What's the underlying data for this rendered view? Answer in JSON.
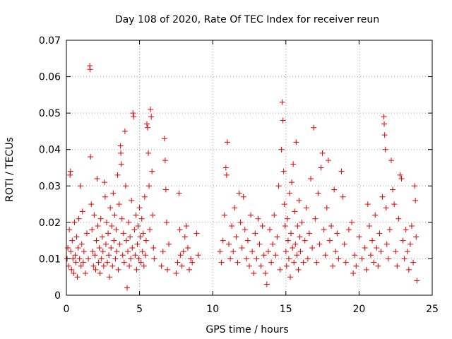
{
  "chart_data": {
    "type": "scatter",
    "title": "Day 108 of 2020, Rate Of TEC Index for receiver reun",
    "xlabel": "GPS time / hours",
    "ylabel": "ROTI / TECUs",
    "xlim": [
      0,
      25
    ],
    "ylim": [
      0,
      0.07
    ],
    "xticks": [
      0,
      5,
      10,
      15,
      20,
      25
    ],
    "yticks": [
      0,
      0.01,
      0.02,
      0.03,
      0.04,
      0.05,
      0.06,
      0.07
    ],
    "xtick_labels": [
      "0",
      "5",
      "10",
      "15",
      "20",
      "25"
    ],
    "ytick_labels": [
      "0",
      "0.01",
      "0.02",
      "0.03",
      "0.04",
      "0.05",
      "0.06",
      "0.07"
    ],
    "grid": true,
    "marker": "+",
    "series": [
      {
        "color": "#e00000",
        "points": [
          [
            0.05,
            0.01
          ],
          [
            0.1,
            0.013
          ],
          [
            0.15,
            0.008
          ],
          [
            0.2,
            0.018
          ],
          [
            0.25,
            0.033
          ],
          [
            0.28,
            0.034
          ],
          [
            0.3,
            0.012
          ],
          [
            0.35,
            0.007
          ],
          [
            0.4,
            0.015
          ],
          [
            0.45,
            0.01
          ],
          [
            0.5,
            0.006
          ],
          [
            0.55,
            0.02
          ],
          [
            0.6,
            0.011
          ],
          [
            0.65,
            0.009
          ],
          [
            0.7,
            0.016
          ],
          [
            0.75,
            0.005
          ],
          [
            0.8,
            0.013
          ],
          [
            0.85,
            0.021
          ],
          [
            0.9,
            0.01
          ],
          [
            0.95,
            0.03
          ],
          [
            1.0,
            0.008
          ],
          [
            1.05,
            0.014
          ],
          [
            1.1,
            0.023
          ],
          [
            1.15,
            0.009
          ],
          [
            1.2,
            0.012
          ],
          [
            1.3,
            0.006
          ],
          [
            1.4,
            0.017
          ],
          [
            1.5,
            0.01
          ],
          [
            1.6,
            0.063
          ],
          [
            1.62,
            0.062
          ],
          [
            1.65,
            0.038
          ],
          [
            1.7,
            0.025
          ],
          [
            1.75,
            0.018
          ],
          [
            1.8,
            0.012
          ],
          [
            1.85,
            0.008
          ],
          [
            1.9,
            0.022
          ],
          [
            1.95,
            0.011
          ],
          [
            2.0,
            0.007
          ],
          [
            2.05,
            0.015
          ],
          [
            2.1,
            0.032
          ],
          [
            2.15,
            0.019
          ],
          [
            2.2,
            0.009
          ],
          [
            2.25,
            0.013
          ],
          [
            2.3,
            0.006
          ],
          [
            2.35,
            0.021
          ],
          [
            2.4,
            0.01
          ],
          [
            2.45,
            0.016
          ],
          [
            2.5,
            0.012
          ],
          [
            2.55,
            0.008
          ],
          [
            2.6,
            0.031
          ],
          [
            2.65,
            0.027
          ],
          [
            2.7,
            0.014
          ],
          [
            2.75,
            0.02
          ],
          [
            2.8,
            0.009
          ],
          [
            2.85,
            0.017
          ],
          [
            2.9,
            0.011
          ],
          [
            2.95,
            0.005
          ],
          [
            3.0,
            0.024
          ],
          [
            3.05,
            0.013
          ],
          [
            3.1,
            0.019
          ],
          [
            3.15,
            0.008
          ],
          [
            3.2,
            0.028
          ],
          [
            3.25,
            0.015
          ],
          [
            3.3,
            0.022
          ],
          [
            3.35,
            0.01
          ],
          [
            3.4,
            0.018
          ],
          [
            3.45,
            0.012
          ],
          [
            3.5,
            0.033
          ],
          [
            3.55,
            0.007
          ],
          [
            3.6,
            0.025
          ],
          [
            3.65,
            0.014
          ],
          [
            3.7,
            0.041
          ],
          [
            3.72,
            0.039
          ],
          [
            3.75,
            0.036
          ],
          [
            3.8,
            0.021
          ],
          [
            3.85,
            0.011
          ],
          [
            3.9,
            0.017
          ],
          [
            3.95,
            0.009
          ],
          [
            4.0,
            0.045
          ],
          [
            4.05,
            0.03
          ],
          [
            4.1,
            0.015
          ],
          [
            4.15,
            0.002
          ],
          [
            4.2,
            0.012
          ],
          [
            4.25,
            0.02
          ],
          [
            4.3,
            0.008
          ],
          [
            4.35,
            0.016
          ],
          [
            4.4,
            0.01
          ],
          [
            4.45,
            0.026
          ],
          [
            4.5,
            0.013
          ],
          [
            4.55,
            0.05
          ],
          [
            4.6,
            0.049
          ],
          [
            4.65,
            0.018
          ],
          [
            4.7,
            0.011
          ],
          [
            4.75,
            0.022
          ],
          [
            4.8,
            0.007
          ],
          [
            4.85,
            0.014
          ],
          [
            4.9,
            0.019
          ],
          [
            4.95,
            0.01
          ],
          [
            5.0,
            0.024
          ],
          [
            5.05,
            0.016
          ],
          [
            5.1,
            0.009
          ],
          [
            5.15,
            0.021
          ],
          [
            5.2,
            0.012
          ],
          [
            5.25,
            0.017
          ],
          [
            5.3,
            0.008
          ],
          [
            5.35,
            0.027
          ],
          [
            5.4,
            0.011
          ],
          [
            5.45,
            0.015
          ],
          [
            5.5,
            0.047
          ],
          [
            5.55,
            0.046
          ],
          [
            5.6,
            0.039
          ],
          [
            5.65,
            0.03
          ],
          [
            5.7,
            0.018
          ],
          [
            5.75,
            0.051
          ],
          [
            5.8,
            0.049
          ],
          [
            5.85,
            0.034
          ],
          [
            5.9,
            0.022
          ],
          [
            5.95,
            0.013
          ],
          [
            6.0,
            0.01
          ],
          [
            6.5,
            0.008
          ],
          [
            6.6,
            0.012
          ],
          [
            6.7,
            0.043
          ],
          [
            6.75,
            0.037
          ],
          [
            6.8,
            0.029
          ],
          [
            6.85,
            0.02
          ],
          [
            6.9,
            0.007
          ],
          [
            7.0,
            0.014
          ],
          [
            7.5,
            0.006
          ],
          [
            7.6,
            0.009
          ],
          [
            7.7,
            0.028
          ],
          [
            7.75,
            0.018
          ],
          [
            7.8,
            0.011
          ],
          [
            7.9,
            0.008
          ],
          [
            8.0,
            0.012
          ],
          [
            8.1,
            0.016
          ],
          [
            8.2,
            0.019
          ],
          [
            8.3,
            0.013
          ],
          [
            8.4,
            0.007
          ],
          [
            8.5,
            0.01
          ],
          [
            8.6,
            0.009
          ],
          [
            8.9,
            0.017
          ],
          [
            9.0,
            0.011
          ],
          [
            10.5,
            0.012
          ],
          [
            10.6,
            0.009
          ],
          [
            10.7,
            0.015
          ],
          [
            10.8,
            0.022
          ],
          [
            10.9,
            0.035
          ],
          [
            10.95,
            0.033
          ],
          [
            11.0,
            0.042
          ],
          [
            11.1,
            0.014
          ],
          [
            11.2,
            0.01
          ],
          [
            11.3,
            0.019
          ],
          [
            11.4,
            0.012
          ],
          [
            11.5,
            0.024
          ],
          [
            11.6,
            0.016
          ],
          [
            11.7,
            0.009
          ],
          [
            11.8,
            0.028
          ],
          [
            11.9,
            0.02
          ],
          [
            12.0,
            0.013
          ],
          [
            12.1,
            0.027
          ],
          [
            12.2,
            0.018
          ],
          [
            12.3,
            0.01
          ],
          [
            12.4,
            0.015
          ],
          [
            12.5,
            0.008
          ],
          [
            12.6,
            0.022
          ],
          [
            12.7,
            0.012
          ],
          [
            12.8,
            0.006
          ],
          [
            12.9,
            0.017
          ],
          [
            13.0,
            0.01
          ],
          [
            13.1,
            0.021
          ],
          [
            13.2,
            0.014
          ],
          [
            13.3,
            0.008
          ],
          [
            13.4,
            0.019
          ],
          [
            13.5,
            0.011
          ],
          [
            13.6,
            0.006
          ],
          [
            13.7,
            0.003
          ],
          [
            13.8,
            0.012
          ],
          [
            13.9,
            0.018
          ],
          [
            14.0,
            0.009
          ],
          [
            14.1,
            0.014
          ],
          [
            14.2,
            0.022
          ],
          [
            14.3,
            0.011
          ],
          [
            14.4,
            0.016
          ],
          [
            14.5,
            0.03
          ],
          [
            14.6,
            0.007
          ],
          [
            14.7,
            0.04
          ],
          [
            14.75,
            0.053
          ],
          [
            14.8,
            0.048
          ],
          [
            14.85,
            0.034
          ],
          [
            14.9,
            0.025
          ],
          [
            14.95,
            0.019
          ],
          [
            15.0,
            0.012
          ],
          [
            15.05,
            0.008
          ],
          [
            15.1,
            0.021
          ],
          [
            15.15,
            0.015
          ],
          [
            15.2,
            0.01
          ],
          [
            15.25,
            0.028
          ],
          [
            15.3,
            0.005
          ],
          [
            15.35,
            0.017
          ],
          [
            15.4,
            0.031
          ],
          [
            15.45,
            0.013
          ],
          [
            15.5,
            0.036
          ],
          [
            15.55,
            0.009
          ],
          [
            15.6,
            0.023
          ],
          [
            15.65,
            0.014
          ],
          [
            15.7,
            0.042
          ],
          [
            15.75,
            0.011
          ],
          [
            15.8,
            0.019
          ],
          [
            15.85,
            0.007
          ],
          [
            15.9,
            0.026
          ],
          [
            15.95,
            0.016
          ],
          [
            16.0,
            0.012
          ],
          [
            16.1,
            0.02
          ],
          [
            16.2,
            0.009
          ],
          [
            16.3,
            0.015
          ],
          [
            16.4,
            0.024
          ],
          [
            16.5,
            0.01
          ],
          [
            16.6,
            0.017
          ],
          [
            16.7,
            0.032
          ],
          [
            16.8,
            0.013
          ],
          [
            16.9,
            0.046
          ],
          [
            17.0,
            0.021
          ],
          [
            17.1,
            0.009
          ],
          [
            17.2,
            0.028
          ],
          [
            17.3,
            0.014
          ],
          [
            17.4,
            0.035
          ],
          [
            17.5,
            0.039
          ],
          [
            17.6,
            0.018
          ],
          [
            17.7,
            0.011
          ],
          [
            17.8,
            0.024
          ],
          [
            17.9,
            0.037
          ],
          [
            18.0,
            0.015
          ],
          [
            18.1,
            0.019
          ],
          [
            18.2,
            0.008
          ],
          [
            18.3,
            0.029
          ],
          [
            18.4,
            0.012
          ],
          [
            18.5,
            0.017
          ],
          [
            18.6,
            0.01
          ],
          [
            18.8,
            0.034
          ],
          [
            18.9,
            0.027
          ],
          [
            19.0,
            0.014
          ],
          [
            19.1,
            0.009
          ],
          [
            19.3,
            0.018
          ],
          [
            19.5,
            0.02
          ],
          [
            19.6,
            0.006
          ],
          [
            19.7,
            0.011
          ],
          [
            19.8,
            0.008
          ],
          [
            20.0,
            0.016
          ],
          [
            20.2,
            0.01
          ],
          [
            20.4,
            0.013
          ],
          [
            20.5,
            0.007
          ],
          [
            20.6,
            0.025
          ],
          [
            20.7,
            0.019
          ],
          [
            20.8,
            0.011
          ],
          [
            20.9,
            0.015
          ],
          [
            21.0,
            0.009
          ],
          [
            21.1,
            0.022
          ],
          [
            21.2,
            0.013
          ],
          [
            21.3,
            0.008
          ],
          [
            21.4,
            0.017
          ],
          [
            21.5,
            0.012
          ],
          [
            21.6,
            0.027
          ],
          [
            21.7,
            0.049
          ],
          [
            21.72,
            0.047
          ],
          [
            21.75,
            0.044
          ],
          [
            21.8,
            0.04
          ],
          [
            21.85,
            0.024
          ],
          [
            21.9,
            0.014
          ],
          [
            22.0,
            0.01
          ],
          [
            22.1,
            0.018
          ],
          [
            22.2,
            0.037
          ],
          [
            22.3,
            0.029
          ],
          [
            22.4,
            0.025
          ],
          [
            22.5,
            0.012
          ],
          [
            22.6,
            0.008
          ],
          [
            22.7,
            0.021
          ],
          [
            22.8,
            0.033
          ],
          [
            22.9,
            0.032
          ],
          [
            23.0,
            0.015
          ],
          [
            23.1,
            0.01
          ],
          [
            23.2,
            0.018
          ],
          [
            23.3,
            0.012
          ],
          [
            23.4,
            0.007
          ],
          [
            23.5,
            0.014
          ],
          [
            23.6,
            0.019
          ],
          [
            23.7,
            0.009
          ],
          [
            23.8,
            0.03
          ],
          [
            23.85,
            0.026
          ],
          [
            23.9,
            0.016
          ],
          [
            23.95,
            0.004
          ]
        ]
      }
    ]
  }
}
